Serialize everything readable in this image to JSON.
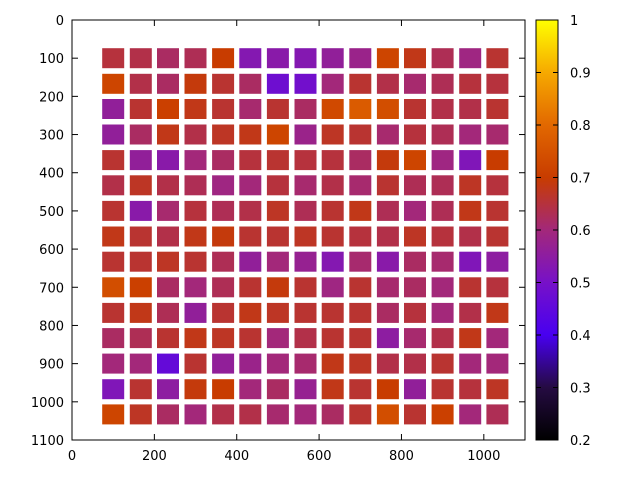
{
  "chart_data": {
    "type": "heatmap",
    "title": "",
    "xlabel": "",
    "ylabel": "",
    "xlim": [
      0,
      1100
    ],
    "ylim": [
      0,
      1100
    ],
    "y_inverted": true,
    "x_ticks": [
      0,
      200,
      400,
      600,
      800,
      1000
    ],
    "y_ticks": [
      0,
      100,
      200,
      300,
      400,
      500,
      600,
      700,
      800,
      900,
      1000,
      1100
    ],
    "colorbar": {
      "range": [
        0.2,
        1
      ],
      "ticks": [
        0.2,
        0.3,
        0.4,
        0.5,
        0.6,
        0.7,
        0.8,
        0.9,
        1
      ],
      "colormap": "gnuplot"
    },
    "x": [
      100,
      167,
      233,
      300,
      367,
      433,
      500,
      567,
      633,
      700,
      767,
      833,
      900,
      967,
      1033
    ],
    "y": [
      100,
      167,
      233,
      300,
      367,
      433,
      500,
      567,
      633,
      700,
      767,
      833,
      900,
      967,
      1033
    ],
    "values": [
      [
        0.65,
        0.64,
        0.62,
        0.63,
        0.7,
        0.53,
        0.54,
        0.53,
        0.56,
        0.58,
        0.72,
        0.68,
        0.63,
        0.59,
        0.66
      ],
      [
        0.72,
        0.64,
        0.62,
        0.69,
        0.66,
        0.62,
        0.48,
        0.49,
        0.6,
        0.66,
        0.64,
        0.61,
        0.63,
        0.65,
        0.65
      ],
      [
        0.56,
        0.66,
        0.71,
        0.68,
        0.66,
        0.61,
        0.66,
        0.62,
        0.73,
        0.77,
        0.74,
        0.66,
        0.64,
        0.64,
        0.66
      ],
      [
        0.56,
        0.62,
        0.68,
        0.64,
        0.67,
        0.68,
        0.72,
        0.58,
        0.67,
        0.66,
        0.61,
        0.65,
        0.63,
        0.6,
        0.61
      ],
      [
        0.66,
        0.56,
        0.54,
        0.6,
        0.62,
        0.65,
        0.66,
        0.65,
        0.65,
        0.62,
        0.69,
        0.72,
        0.59,
        0.52,
        0.7
      ],
      [
        0.64,
        0.67,
        0.64,
        0.63,
        0.59,
        0.6,
        0.65,
        0.61,
        0.64,
        0.61,
        0.66,
        0.63,
        0.63,
        0.67,
        0.65
      ],
      [
        0.66,
        0.54,
        0.61,
        0.65,
        0.63,
        0.64,
        0.67,
        0.63,
        0.66,
        0.68,
        0.63,
        0.6,
        0.63,
        0.68,
        0.66
      ],
      [
        0.68,
        0.66,
        0.64,
        0.68,
        0.69,
        0.66,
        0.66,
        0.67,
        0.66,
        0.65,
        0.64,
        0.67,
        0.65,
        0.64,
        0.66
      ],
      [
        0.66,
        0.66,
        0.67,
        0.66,
        0.63,
        0.56,
        0.6,
        0.57,
        0.53,
        0.61,
        0.54,
        0.62,
        0.61,
        0.52,
        0.55
      ],
      [
        0.74,
        0.71,
        0.62,
        0.6,
        0.63,
        0.66,
        0.69,
        0.66,
        0.59,
        0.66,
        0.61,
        0.62,
        0.6,
        0.66,
        0.65
      ],
      [
        0.66,
        0.68,
        0.63,
        0.56,
        0.66,
        0.68,
        0.67,
        0.66,
        0.66,
        0.66,
        0.62,
        0.65,
        0.6,
        0.64,
        0.68
      ],
      [
        0.62,
        0.63,
        0.66,
        0.68,
        0.67,
        0.66,
        0.6,
        0.64,
        0.66,
        0.66,
        0.55,
        0.61,
        0.64,
        0.68,
        0.6
      ],
      [
        0.6,
        0.6,
        0.46,
        0.66,
        0.56,
        0.58,
        0.6,
        0.61,
        0.68,
        0.67,
        0.64,
        0.64,
        0.66,
        0.6,
        0.6
      ],
      [
        0.52,
        0.66,
        0.55,
        0.69,
        0.7,
        0.6,
        0.62,
        0.57,
        0.68,
        0.66,
        0.7,
        0.56,
        0.66,
        0.65,
        0.67
      ],
      [
        0.72,
        0.67,
        0.62,
        0.6,
        0.64,
        0.64,
        0.61,
        0.6,
        0.62,
        0.66,
        0.74,
        0.66,
        0.71,
        0.6,
        0.63
      ]
    ]
  }
}
